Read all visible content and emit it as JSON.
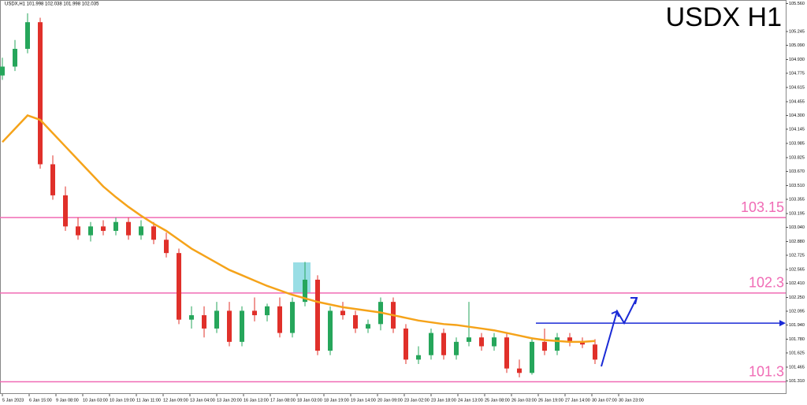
{
  "chart_data": {
    "type": "candlestick",
    "title": "USDX H1",
    "header": "USDX,H1  101.998 102.038 101.998 102.035",
    "x_labels": [
      "5 Jan 2023",
      "6 Jan 15:00",
      "9 Jan 08:00",
      "10 Jan 03:00",
      "10 Jan 19:00",
      "11 Jan 11:00",
      "12 Jan 09:00",
      "13 Jan 04:00",
      "13 Jan 20:00",
      "16 Jan 13:00",
      "17 Jan 08:00",
      "18 Jan 03:00",
      "18 Jan 19:00",
      "19 Jan 14:00",
      "20 Jan 09:00",
      "23 Jan 02:00",
      "23 Jan 18:00",
      "24 Jan 13:00",
      "25 Jan 08:00",
      "26 Jan 03:00",
      "26 Jan 19:00",
      "27 Jan 14:00",
      "30 Jan 07:00",
      "30 Jan 23:00"
    ],
    "open": [
      104.75,
      104.85,
      105.05,
      105.35,
      103.75,
      103.4,
      103.05,
      102.95,
      103.05,
      103.0,
      103.1,
      102.95,
      103.05,
      102.9,
      102.75,
      102.0,
      102.05,
      101.9,
      102.1,
      101.75,
      102.1,
      102.05,
      102.15,
      101.85,
      102.2,
      102.45,
      101.65,
      102.1,
      102.05,
      101.9,
      101.95,
      102.2,
      101.9,
      101.55,
      101.6,
      101.85,
      101.6,
      101.75,
      101.8,
      101.7,
      101.8,
      101.45,
      101.4,
      101.75,
      101.65,
      101.8,
      101.75,
      101.72
    ],
    "high": [
      104.95,
      105.15,
      105.45,
      105.4,
      103.85,
      103.5,
      103.15,
      103.1,
      103.12,
      103.15,
      103.15,
      103.12,
      103.1,
      102.98,
      102.8,
      102.15,
      102.15,
      102.2,
      102.2,
      102.15,
      102.25,
      102.18,
      102.25,
      102.25,
      102.65,
      102.5,
      102.15,
      102.2,
      102.1,
      102.0,
      102.25,
      102.25,
      101.95,
      101.7,
      101.9,
      101.9,
      101.8,
      102.2,
      101.85,
      101.85,
      101.85,
      101.55,
      101.8,
      101.9,
      101.85,
      101.85,
      101.8,
      101.78
    ],
    "low": [
      104.7,
      104.8,
      105.0,
      103.7,
      103.35,
      103.0,
      102.9,
      102.88,
      102.95,
      102.95,
      102.9,
      102.9,
      102.85,
      102.7,
      101.95,
      101.9,
      101.8,
      101.85,
      101.7,
      101.7,
      101.98,
      101.98,
      101.8,
      101.8,
      102.15,
      101.6,
      101.6,
      102.0,
      101.85,
      101.85,
      101.88,
      101.85,
      101.5,
      101.5,
      101.55,
      101.55,
      101.55,
      101.7,
      101.65,
      101.65,
      101.4,
      101.35,
      101.38,
      101.6,
      101.6,
      101.7,
      101.68,
      101.5
    ],
    "close": [
      104.85,
      105.05,
      105.35,
      103.75,
      103.4,
      103.05,
      102.95,
      103.05,
      103.0,
      103.1,
      102.95,
      103.05,
      102.9,
      102.75,
      102.0,
      102.05,
      101.9,
      102.1,
      101.75,
      102.1,
      102.05,
      102.15,
      101.85,
      102.2,
      102.45,
      101.65,
      102.1,
      102.05,
      101.9,
      101.95,
      102.2,
      101.9,
      101.55,
      101.6,
      101.85,
      101.6,
      101.75,
      101.8,
      101.7,
      101.8,
      101.45,
      101.4,
      101.75,
      101.65,
      101.8,
      101.75,
      101.72,
      101.55
    ],
    "up_color": "#26a65b",
    "down_color": "#e0302a",
    "moving_average": {
      "color": "#f5a31a",
      "values": [
        104.0,
        104.15,
        104.3,
        104.25,
        104.1,
        103.95,
        103.8,
        103.65,
        103.5,
        103.38,
        103.27,
        103.17,
        103.08,
        103.0,
        102.9,
        102.8,
        102.72,
        102.64,
        102.56,
        102.5,
        102.44,
        102.38,
        102.33,
        102.28,
        102.24,
        102.2,
        102.17,
        102.14,
        102.12,
        102.1,
        102.08,
        102.05,
        102.02,
        101.99,
        101.97,
        101.95,
        101.94,
        101.92,
        101.9,
        101.88,
        101.85,
        101.82,
        101.79,
        101.77,
        101.76,
        101.75,
        101.75,
        101.76
      ]
    },
    "levels": [
      103.15,
      102.3,
      101.3
    ],
    "level_color": "#f06bb5",
    "resistance": 101.96,
    "resistance_color": "#1a2ad6",
    "ylim": [
      101.163,
      105.6
    ],
    "yticks": [
      {
        "value": 105.56,
        "label": "105.560"
      },
      105.245,
      {
        "value": 105.09,
        "label": "105.090"
      },
      {
        "value": 104.93,
        "label": "104.930"
      },
      104.775,
      104.615,
      104.455,
      {
        "value": 104.3,
        "label": "104.300"
      },
      104.145,
      103.985,
      103.825,
      {
        "value": 103.67,
        "label": "103.670"
      },
      {
        "value": 103.51,
        "label": "103.510"
      },
      103.355,
      103.195,
      {
        "value": 103.04,
        "label": "103.040"
      },
      {
        "value": 102.88,
        "label": "102.880"
      },
      102.725,
      102.565,
      {
        "value": 102.41,
        "label": "102.410"
      },
      {
        "value": 102.25,
        "label": "102.250"
      },
      102.095,
      {
        "value": 101.94,
        "label": "101.940"
      },
      {
        "value": 101.78,
        "label": "101.780"
      },
      101.625,
      101.465,
      {
        "value": 101.31,
        "label": "101.310"
      }
    ]
  }
}
